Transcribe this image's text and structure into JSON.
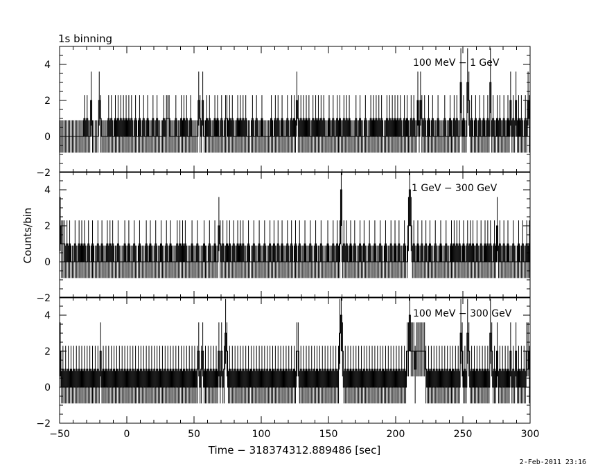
{
  "header": {
    "binning_label": "1s binning"
  },
  "footer": {
    "timestamp": "2-Feb-2011 23:16"
  },
  "chart_data": {
    "type": "line",
    "xlabel": "Time − 318374312.889486 [sec]",
    "ylabel": "Counts/bin",
    "x_range": [
      -50,
      300
    ],
    "x_ticks": [
      -50,
      0,
      50,
      100,
      150,
      200,
      250,
      300
    ],
    "x_tick_labels": [
      "−50",
      "0",
      "50",
      "100",
      "150",
      "200",
      "250",
      "300"
    ],
    "y_range": [
      -2,
      5
    ],
    "y_ticks": [
      -2,
      0,
      2,
      4
    ],
    "y_tick_labels": [
      "−2",
      "0",
      "2",
      "4"
    ],
    "bin_width": 1,
    "error_bars": true,
    "grid": false,
    "panels": [
      {
        "label": "100 MeV − 1 GeV",
        "counts": {
          "-32": 1,
          "-30": 1,
          "-27": 2,
          "-21": 2,
          "-20": 1,
          "-14": 1,
          "-12": 1,
          "-9": 1,
          "-7": 1,
          "-5": 1,
          "-3": 1,
          "-1": 1,
          "1": 1,
          "3": 1,
          "6": 1,
          "9": 1,
          "12": 1,
          "15": 1,
          "19": 1,
          "22": 1,
          "27": 1,
          "29": 1,
          "30": 1,
          "31": 1,
          "36": 1,
          "40": 1,
          "42": 1,
          "44": 1,
          "47": 1,
          "53": 2,
          "54": 1,
          "56": 2,
          "59": 1,
          "61": 1,
          "65": 1,
          "67": 1,
          "70": 1,
          "73": 1,
          "74": 1,
          "76": 1,
          "78": 1,
          "82": 1,
          "84": 1,
          "86": 1,
          "88": 1,
          "93": 1,
          "96": 1,
          "100": 1,
          "107": 1,
          "110": 1,
          "112": 1,
          "115": 1,
          "119": 1,
          "122": 1,
          "124": 1,
          "126": 2,
          "127": 1,
          "129": 1,
          "131": 1,
          "133": 1,
          "135": 1,
          "138": 1,
          "140": 1,
          "142": 1,
          "144": 1,
          "146": 1,
          "150": 1,
          "153": 1,
          "156": 1,
          "158": 1,
          "161": 1,
          "163": 1,
          "165": 1,
          "170": 1,
          "173": 1,
          "177": 1,
          "181": 1,
          "183": 1,
          "185": 1,
          "187": 1,
          "189": 1,
          "193": 1,
          "195": 1,
          "197": 1,
          "199": 1,
          "201": 1,
          "203": 1,
          "206": 1,
          "208": 1,
          "211": 1,
          "213": 1,
          "216": 2,
          "218": 2,
          "219": 1,
          "221": 1,
          "224": 1,
          "227": 1,
          "231": 1,
          "236": 1,
          "240": 1,
          "243": 1,
          "245": 1,
          "248": 3,
          "250": 1,
          "253": 3,
          "254": 2,
          "256": 1,
          "259": 1,
          "262": 1,
          "265": 1,
          "268": 1,
          "270": 3,
          "272": 1,
          "275": 1,
          "277": 1,
          "280": 1,
          "283": 1,
          "285": 2,
          "287": 1,
          "289": 2,
          "291": 1,
          "293": 1,
          "296": 1,
          "298": 2,
          "299": 1
        }
      },
      {
        "label": "1 GeV − 300 GeV",
        "counts": {
          "-50": 2,
          "-49": 1,
          "-48": 1,
          "-47": 1,
          "-45": 1,
          "-43": 1,
          "-39": 1,
          "-36": 1,
          "-34": 1,
          "-32": 1,
          "-29": 1,
          "-26": 1,
          "-22": 1,
          "-19": 1,
          "-15": 1,
          "-13": 1,
          "-11": 1,
          "-7": 1,
          "-2": 1,
          "1": 1,
          "5": 1,
          "9": 1,
          "14": 1,
          "17": 1,
          "21": 1,
          "25": 1,
          "29": 1,
          "32": 1,
          "37": 1,
          "39": 1,
          "41": 1,
          "43": 1,
          "48": 1,
          "52": 1,
          "57": 1,
          "61": 1,
          "65": 1,
          "68": 2,
          "69": 1,
          "71": 1,
          "74": 1,
          "76": 1,
          "79": 1,
          "82": 1,
          "84": 1,
          "86": 1,
          "90": 1,
          "94": 1,
          "98": 1,
          "102": 1,
          "106": 1,
          "109": 1,
          "112": 1,
          "115": 1,
          "119": 1,
          "122": 1,
          "125": 1,
          "128": 1,
          "132": 1,
          "136": 1,
          "140": 1,
          "144": 1,
          "149": 1,
          "153": 1,
          "156": 1,
          "158": 1,
          "159": 4,
          "161": 1,
          "163": 1,
          "166": 1,
          "169": 1,
          "173": 1,
          "176": 1,
          "180": 1,
          "184": 1,
          "188": 1,
          "192": 1,
          "196": 1,
          "199": 1,
          "202": 1,
          "206": 1,
          "209": 2,
          "210": 4,
          "211": 2,
          "213": 1,
          "216": 1,
          "219": 1,
          "222": 1,
          "225": 1,
          "229": 1,
          "233": 1,
          "237": 1,
          "241": 1,
          "243": 1,
          "245": 1,
          "247": 1,
          "250": 1,
          "253": 1,
          "255": 1,
          "257": 1,
          "260": 1,
          "263": 1,
          "266": 1,
          "268": 1,
          "270": 1,
          "273": 1,
          "275": 2,
          "277": 1,
          "280": 1,
          "283": 1,
          "287": 1,
          "291": 1,
          "294": 1,
          "297": 1,
          "299": 1
        }
      },
      {
        "label": "100 MeV − 300 GeV",
        "counts": {
          "-50": 2,
          "-48": 1,
          "-46": 1,
          "-44": 1,
          "-42": 1,
          "-40": 1,
          "-38": 1,
          "-36": 1,
          "-34": 1,
          "-32": 1,
          "-30": 1,
          "-28": 1,
          "-26": 1,
          "-24": 1,
          "-22": 1,
          "-20": 2,
          "-18": 1,
          "-16": 1,
          "-14": 1,
          "-12": 1,
          "-10": 1,
          "-8": 1,
          "-6": 1,
          "-4": 1,
          "-2": 1,
          "0": 1,
          "2": 1,
          "4": 1,
          "6": 1,
          "8": 1,
          "10": 1,
          "12": 1,
          "14": 1,
          "16": 1,
          "18": 1,
          "20": 1,
          "22": 1,
          "24": 1,
          "26": 1,
          "28": 1,
          "30": 1,
          "32": 1,
          "34": 1,
          "36": 1,
          "38": 1,
          "40": 1,
          "42": 1,
          "44": 1,
          "46": 1,
          "48": 1,
          "50": 1,
          "52": 1,
          "53": 2,
          "55": 1,
          "56": 2,
          "58": 1,
          "60": 1,
          "62": 1,
          "64": 1,
          "66": 1,
          "68": 2,
          "70": 2,
          "72": 1,
          "73": 3,
          "74": 2,
          "76": 1,
          "78": 1,
          "80": 1,
          "82": 1,
          "84": 1,
          "86": 1,
          "88": 1,
          "90": 1,
          "92": 1,
          "94": 1,
          "96": 1,
          "98": 1,
          "100": 1,
          "102": 1,
          "104": 1,
          "106": 1,
          "108": 1,
          "110": 1,
          "112": 1,
          "114": 1,
          "116": 1,
          "118": 1,
          "120": 1,
          "122": 1,
          "124": 1,
          "126": 2,
          "127": 2,
          "129": 1,
          "131": 1,
          "133": 1,
          "135": 1,
          "137": 1,
          "139": 1,
          "141": 1,
          "143": 1,
          "145": 1,
          "147": 1,
          "149": 1,
          "151": 1,
          "153": 1,
          "155": 1,
          "157": 1,
          "158": 3,
          "159": 4,
          "160": 2,
          "162": 1,
          "164": 1,
          "166": 1,
          "168": 1,
          "170": 1,
          "172": 1,
          "174": 1,
          "176": 1,
          "178": 1,
          "180": 1,
          "182": 1,
          "184": 1,
          "186": 1,
          "188": 1,
          "190": 1,
          "192": 1,
          "194": 1,
          "196": 1,
          "198": 1,
          "200": 1,
          "202": 1,
          "204": 1,
          "206": 1,
          "208": 2,
          "209": 2,
          "210": 4,
          "211": 2,
          "212": 2,
          "213": 2,
          "214": 1,
          "215": 2,
          "216": 2,
          "217": 2,
          "218": 2,
          "219": 2,
          "220": 2,
          "221": 2,
          "222": 1,
          "224": 1,
          "226": 1,
          "228": 1,
          "230": 1,
          "232": 1,
          "234": 1,
          "236": 1,
          "238": 1,
          "240": 1,
          "242": 1,
          "244": 1,
          "246": 1,
          "248": 3,
          "249": 2,
          "251": 1,
          "253": 3,
          "254": 2,
          "256": 1,
          "258": 1,
          "260": 1,
          "262": 1,
          "264": 1,
          "266": 1,
          "268": 1,
          "270": 3,
          "271": 2,
          "273": 1,
          "275": 2,
          "277": 1,
          "279": 1,
          "281": 1,
          "283": 1,
          "285": 2,
          "287": 1,
          "289": 2,
          "291": 1,
          "293": 1,
          "295": 1,
          "297": 2,
          "298": 2,
          "299": 1
        }
      }
    ]
  }
}
